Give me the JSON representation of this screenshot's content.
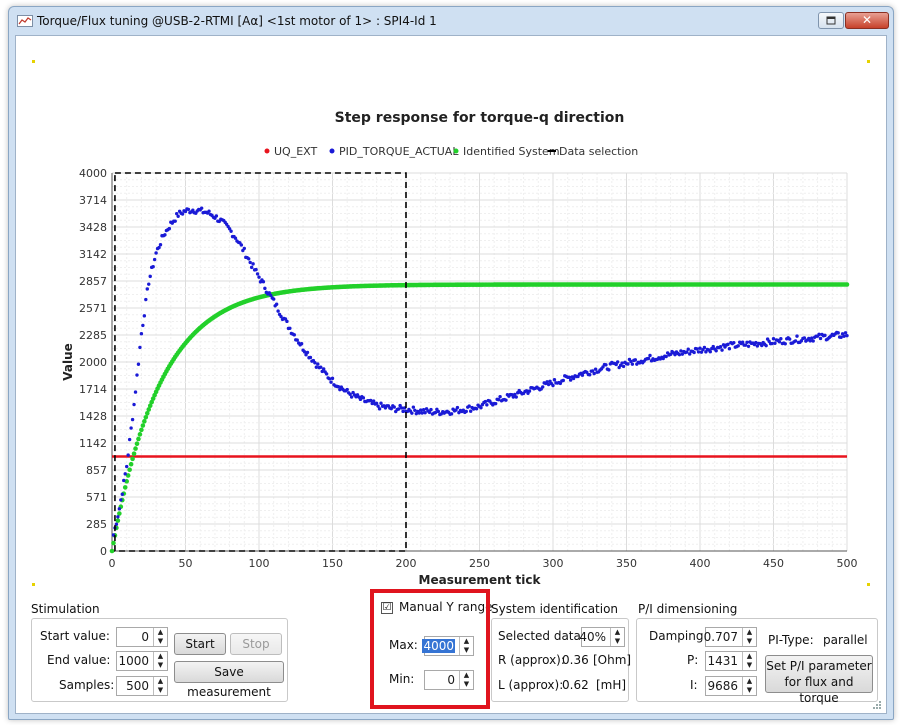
{
  "window": {
    "title": "Torque/Flux tuning @USB-2-RTMI [Aα] <1st motor of 1> : SPI4-Id 1",
    "close_glyph": "✕"
  },
  "chart_data": {
    "type": "scatter",
    "title": "Step response for torque-q direction",
    "xlabel": "Measurement tick",
    "ylabel": "Value",
    "xlim": [
      0,
      500
    ],
    "ylim": [
      0,
      4000
    ],
    "x_ticks": [
      "0",
      "50",
      "100",
      "150",
      "200",
      "250",
      "300",
      "350",
      "400",
      "450",
      "500"
    ],
    "y_ticks": [
      "0",
      "285",
      "571",
      "857",
      "1142",
      "1428",
      "1714",
      "2000",
      "2285",
      "2571",
      "2857",
      "3142",
      "3428",
      "3714",
      "4000"
    ],
    "grid": true,
    "legend_position": "top-center",
    "legend": [
      {
        "name": "UQ_EXT",
        "color": "#e8141e",
        "marker": "●"
      },
      {
        "name": "PID_TORQUE_ACTUAL",
        "color": "#1a1ad6",
        "marker": "●"
      },
      {
        "name": "Identified System",
        "color": "#22d02a",
        "marker": "●"
      },
      {
        "name": "Data selection",
        "color": "#000000",
        "marker": "▬"
      }
    ],
    "series": [
      {
        "name": "UQ_EXT",
        "color": "#e8141e",
        "constant": 1000,
        "x": [
          0,
          500
        ]
      },
      {
        "name": "PID_TORQUE_ACTUAL",
        "color": "#1a1ad6",
        "x": [
          0,
          5,
          10,
          15,
          20,
          25,
          30,
          35,
          40,
          45,
          50,
          55,
          60,
          65,
          70,
          75,
          80,
          85,
          90,
          95,
          100,
          110,
          120,
          130,
          140,
          150,
          160,
          170,
          180,
          190,
          200,
          210,
          220,
          230,
          240,
          250,
          260,
          270,
          280,
          290,
          300,
          320,
          340,
          360,
          380,
          400,
          420,
          440,
          460,
          480,
          500
        ],
        "y": [
          100,
          450,
          900,
          1550,
          2300,
          2850,
          3150,
          3340,
          3460,
          3560,
          3600,
          3610,
          3600,
          3580,
          3540,
          3480,
          3400,
          3300,
          3170,
          3030,
          2900,
          2640,
          2380,
          2150,
          1960,
          1800,
          1680,
          1600,
          1540,
          1510,
          1500,
          1480,
          1470,
          1480,
          1500,
          1530,
          1580,
          1630,
          1680,
          1730,
          1780,
          1880,
          1960,
          2020,
          2080,
          2130,
          2170,
          2200,
          2230,
          2260,
          2290
        ]
      },
      {
        "name": "Identified System",
        "color": "#22d02a",
        "tau": 33,
        "final": 2820
      }
    ],
    "data_selection": {
      "x_from": 2,
      "x_to": 200
    }
  },
  "stimulation": {
    "title": "Stimulation",
    "start_label": "Start value:",
    "start_value": "0",
    "end_label": "End value:",
    "end_value": "1000",
    "samples_label": "Samples:",
    "samples_value": "500",
    "start_button": "Start",
    "stop_button": "Stop",
    "save_button": "Save measurement"
  },
  "manual_range": {
    "checkbox_label": "Manual Y  range",
    "checked": "☑",
    "max_label": "Max:",
    "max_value": "4000",
    "min_label": "Min:",
    "min_value": "0"
  },
  "sysid": {
    "title": "System identification",
    "selected_label": "Selected data:",
    "selected_value": "40%",
    "r_label": "R (approx):",
    "r_value": "0.36",
    "r_unit": "[Ohm]",
    "l_label": "L (approx):",
    "l_value": "0.62",
    "l_unit": "[mH]"
  },
  "pi": {
    "title": "P/I dimensioning",
    "damping_label": "Damping:",
    "damping_value": "0.707",
    "p_label": "P:",
    "p_value": "1431",
    "i_label": "I:",
    "i_value": "9686",
    "type_label": "PI-Type:",
    "type_value": "parallel",
    "set_button_line1": "Set P/I parameter",
    "set_button_line2": "for flux and torque"
  }
}
